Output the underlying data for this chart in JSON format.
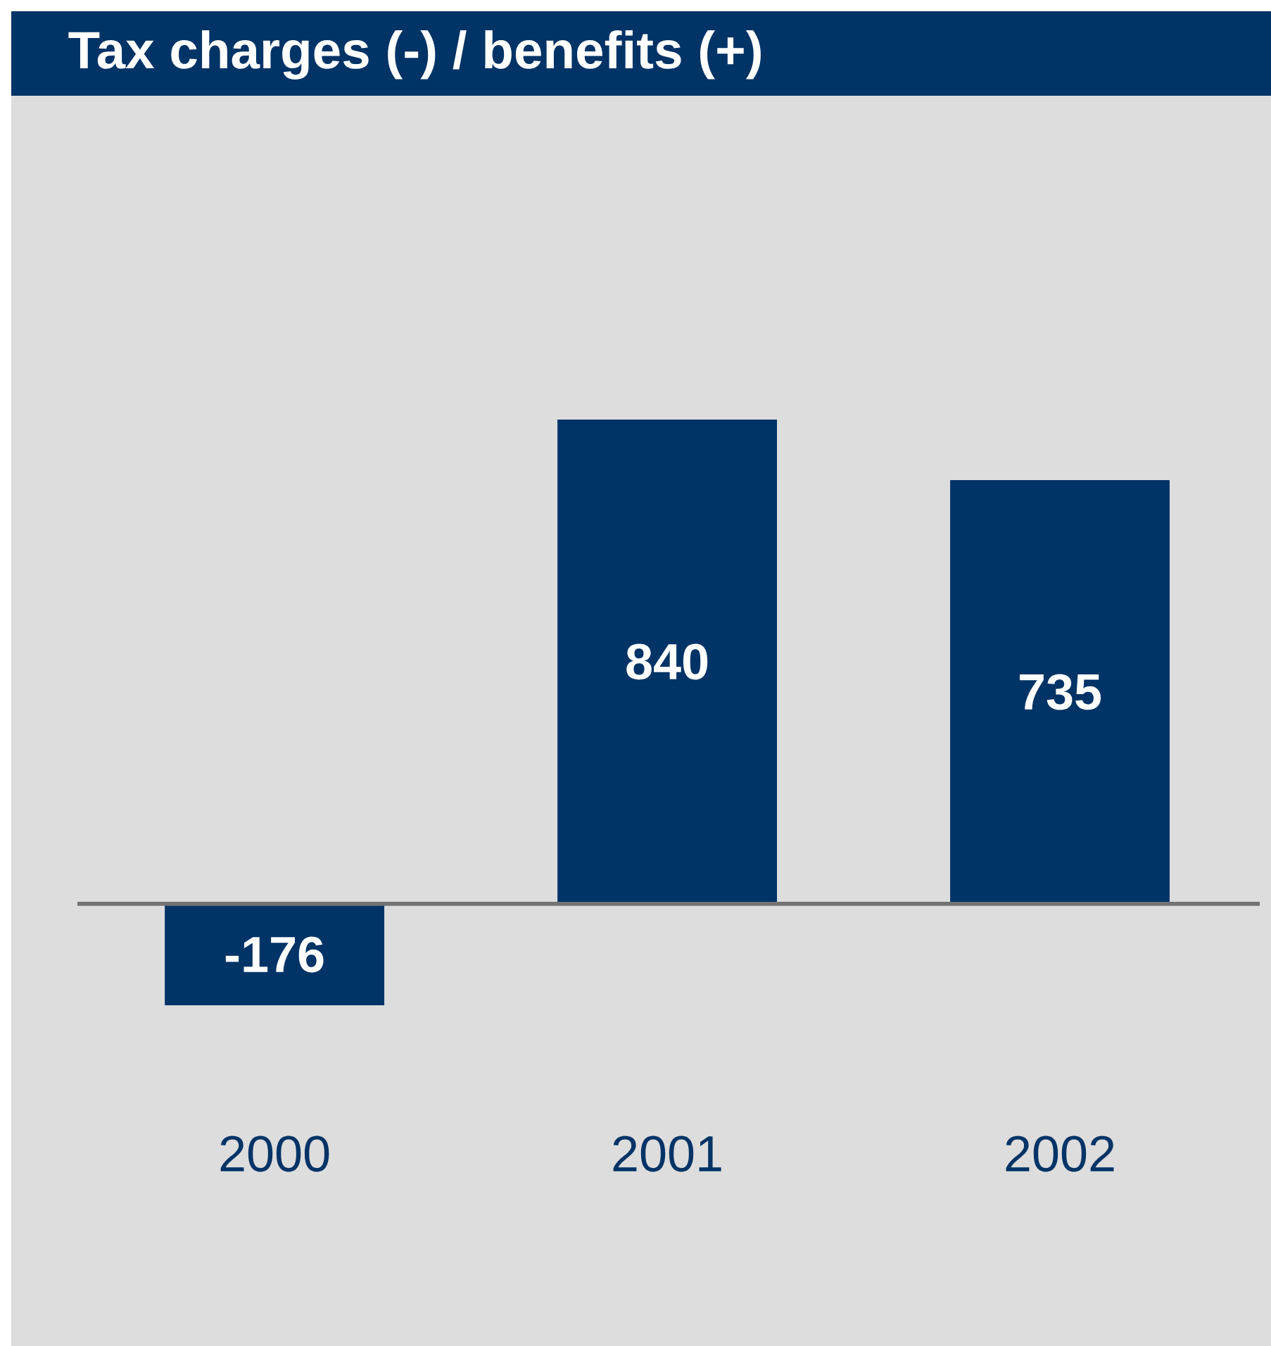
{
  "chart_data": {
    "type": "bar",
    "title": "Tax charges (-) / benefits (+)",
    "categories": [
      "2000",
      "2001",
      "2002"
    ],
    "values": [
      -176,
      840,
      735
    ],
    "color": "#003366",
    "data_labels": true
  }
}
